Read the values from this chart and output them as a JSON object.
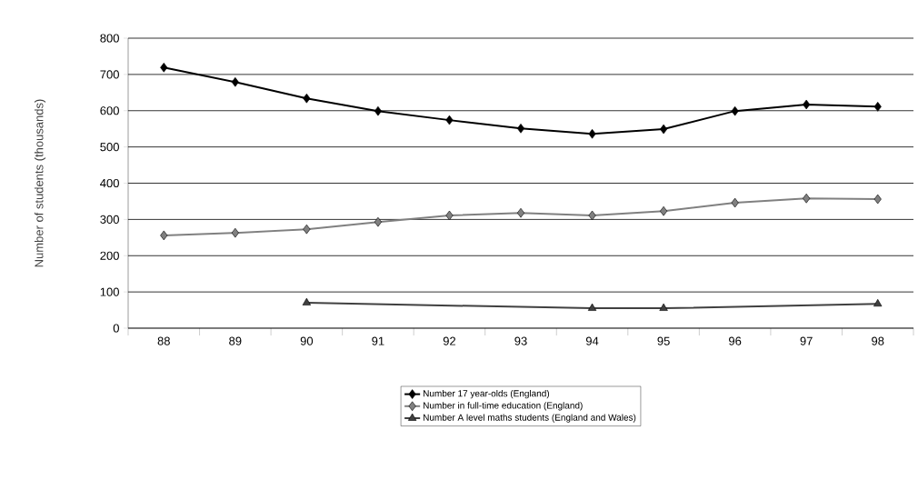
{
  "chart_data": {
    "type": "line",
    "categories": [
      "88",
      "89",
      "90",
      "91",
      "92",
      "93",
      "94",
      "95",
      "96",
      "97",
      "98"
    ],
    "ylabel": "Number of students (thousands)",
    "ylim": [
      0,
      800
    ],
    "yticks": [
      0,
      100,
      200,
      300,
      400,
      500,
      600,
      700,
      800
    ],
    "grid": "y",
    "legend": "bottom",
    "series": [
      {
        "name": "Number 17 year-olds (England)",
        "color": "#000000",
        "marker": "diamond",
        "values": [
          719,
          679,
          634,
          599,
          574,
          551,
          536,
          549,
          599,
          617,
          611
        ]
      },
      {
        "name": "Number in full-time education (England)",
        "color": "#808080",
        "marker": "diamond",
        "values": [
          256,
          263,
          273,
          293,
          311,
          318,
          311,
          323,
          346,
          358,
          356
        ]
      },
      {
        "name": "Number A level maths students (England and Wales)",
        "color": "#404040",
        "marker": "triangle",
        "values": [
          null,
          null,
          70,
          null,
          null,
          null,
          55,
          55,
          null,
          null,
          67
        ]
      }
    ]
  }
}
